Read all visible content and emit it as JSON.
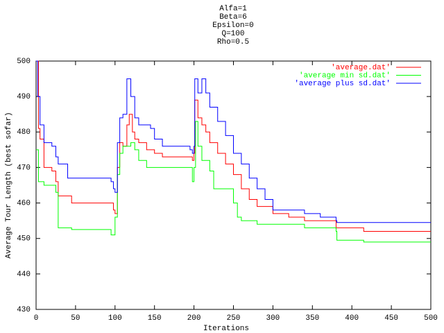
{
  "chart_data": {
    "type": "line",
    "step": true,
    "title": [
      "Alfa=1",
      "Beta=6",
      "Epsilon=0",
      "Q=100",
      "Rho=0.5"
    ],
    "xlabel": "Iterations",
    "ylabel": "Average Tour Length (best sofar)",
    "xlim": [
      0,
      500
    ],
    "xticks": [
      0,
      50,
      100,
      150,
      200,
      250,
      300,
      350,
      400,
      450,
      500
    ],
    "ylim": [
      430,
      500
    ],
    "yticks": [
      430,
      440,
      450,
      460,
      470,
      480,
      490,
      500
    ],
    "legend": "top-right",
    "series": [
      {
        "name": "'average.dat'",
        "color": "#ff0000",
        "x": [
          0,
          3,
          5,
          10,
          20,
          25,
          28,
          45,
          95,
          98,
          100,
          103,
          106,
          110,
          115,
          118,
          122,
          125,
          130,
          140,
          150,
          160,
          195,
          198,
          200,
          201,
          205,
          210,
          215,
          220,
          230,
          240,
          250,
          260,
          270,
          280,
          300,
          320,
          340,
          380,
          415,
          500
        ],
        "values": [
          500,
          481,
          478,
          470,
          469,
          466,
          462,
          460,
          460,
          458,
          457,
          470,
          477,
          476,
          482,
          485,
          480,
          478,
          477,
          475,
          474,
          473,
          473,
          472,
          474,
          489,
          484,
          482,
          480,
          477,
          474,
          471,
          468,
          464,
          461,
          459,
          457,
          456,
          455,
          453,
          452,
          452
        ]
      },
      {
        "name": "'average min sd.dat'",
        "color": "#00ff00",
        "x": [
          0,
          3,
          10,
          25,
          28,
          45,
          95,
          98,
          100,
          103,
          106,
          110,
          120,
          125,
          130,
          140,
          195,
          198,
          200,
          202,
          205,
          210,
          215,
          220,
          225,
          240,
          250,
          255,
          260,
          280,
          340,
          380,
          381,
          415,
          500
        ],
        "values": [
          475,
          466,
          465,
          463,
          453,
          452.5,
          451,
          451,
          456,
          468,
          474,
          476,
          477,
          475,
          472,
          470,
          470,
          466,
          470,
          483,
          476,
          472,
          472,
          469,
          464,
          464,
          460,
          456,
          455,
          454,
          453,
          452,
          449.5,
          449,
          449
        ]
      },
      {
        "name": "'average plus sd.dat'",
        "color": "#0000ff",
        "x": [
          0,
          2,
          5,
          10,
          20,
          25,
          28,
          40,
          95,
          98,
          100,
          103,
          106,
          110,
          115,
          120,
          125,
          130,
          145,
          150,
          160,
          195,
          198,
          200,
          201,
          205,
          210,
          215,
          220,
          230,
          240,
          250,
          260,
          270,
          280,
          290,
          300,
          340,
          360,
          380,
          381,
          500
        ],
        "values": [
          500,
          490,
          482,
          477,
          476,
          473,
          471,
          467,
          466,
          464,
          463,
          477,
          484,
          485,
          495,
          490,
          484,
          482,
          481,
          478,
          476,
          475,
          474,
          476,
          495,
          491,
          495,
          491,
          487,
          483,
          479,
          474,
          471,
          467,
          464,
          461,
          458,
          457,
          456,
          455,
          454.5,
          454.5
        ]
      }
    ]
  }
}
